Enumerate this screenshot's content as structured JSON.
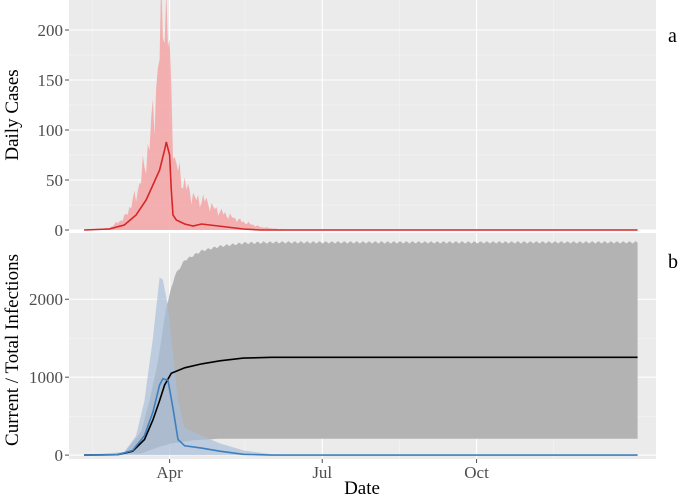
{
  "chart_data": [
    {
      "panel_tag": "a",
      "type": "line",
      "ylabel": "Daily Cases",
      "xlabel": "",
      "x_ticks": [
        "Apr",
        "Jul",
        "Oct"
      ],
      "ylim": [
        0,
        230
      ],
      "yticks": [
        0,
        50,
        100,
        150,
        200
      ],
      "ytick_labels": [
        "0",
        "50",
        "100",
        "150",
        "200"
      ],
      "grid": true,
      "series": [
        {
          "role": "median",
          "color": "#d62728",
          "points": [
            [
              "2020-02-10",
              0
            ],
            [
              "2020-02-25",
              1
            ],
            [
              "2020-03-05",
              5
            ],
            [
              "2020-03-12",
              15
            ],
            [
              "2020-03-18",
              30
            ],
            [
              "2020-03-22",
              45
            ],
            [
              "2020-03-26",
              60
            ],
            [
              "2020-03-29",
              80
            ],
            [
              "2020-03-30",
              88
            ],
            [
              "2020-04-01",
              75
            ],
            [
              "2020-04-02",
              40
            ],
            [
              "2020-04-03",
              15
            ],
            [
              "2020-04-05",
              10
            ],
            [
              "2020-04-10",
              6
            ],
            [
              "2020-04-15",
              4
            ],
            [
              "2020-04-20",
              6
            ],
            [
              "2020-04-25",
              5
            ],
            [
              "2020-05-05",
              3
            ],
            [
              "2020-05-15",
              1
            ],
            [
              "2020-05-25",
              0
            ],
            [
              "2020-06-10",
              0
            ],
            [
              "2021-01-05",
              0
            ]
          ]
        },
        {
          "role": "upper_band",
          "color": "#f4a9a8",
          "points": [
            [
              "2020-02-10",
              0
            ],
            [
              "2020-02-25",
              2
            ],
            [
              "2020-03-05",
              12
            ],
            [
              "2020-03-12",
              35
            ],
            [
              "2020-03-18",
              70
            ],
            [
              "2020-03-22",
              110
            ],
            [
              "2020-03-25",
              160
            ],
            [
              "2020-03-27",
              200
            ],
            [
              "2020-03-29",
              230
            ],
            [
              "2020-03-31",
              200
            ],
            [
              "2020-04-02",
              130
            ],
            [
              "2020-04-04",
              70
            ],
            [
              "2020-04-07",
              55
            ],
            [
              "2020-04-12",
              40
            ],
            [
              "2020-04-17",
              30
            ],
            [
              "2020-04-22",
              30
            ],
            [
              "2020-04-27",
              22
            ],
            [
              "2020-05-05",
              15
            ],
            [
              "2020-05-15",
              8
            ],
            [
              "2020-05-25",
              3
            ],
            [
              "2020-06-05",
              1
            ],
            [
              "2020-06-15",
              0
            ],
            [
              "2021-01-05",
              0
            ]
          ]
        },
        {
          "role": "lower_band",
          "color": "#f4a9a8",
          "points": [
            [
              "2020-02-10",
              0
            ],
            [
              "2021-01-05",
              0
            ]
          ]
        }
      ]
    },
    {
      "panel_tag": "b",
      "type": "line",
      "ylabel": "Current / Total Infections",
      "xlabel": "Date",
      "x_ticks": [
        "Apr",
        "Jul",
        "Oct"
      ],
      "ylim": [
        -50,
        2850
      ],
      "yticks": [
        0,
        1000,
        2000
      ],
      "ytick_labels": [
        "0",
        "1000",
        "2000"
      ],
      "grid": true,
      "series": [
        {
          "role": "total_median",
          "color": "#000000",
          "points": [
            [
              "2020-02-10",
              0
            ],
            [
              "2020-03-01",
              5
            ],
            [
              "2020-03-10",
              50
            ],
            [
              "2020-03-17",
              200
            ],
            [
              "2020-03-22",
              450
            ],
            [
              "2020-03-26",
              700
            ],
            [
              "2020-03-29",
              900
            ],
            [
              "2020-04-02",
              1050
            ],
            [
              "2020-04-10",
              1120
            ],
            [
              "2020-04-20",
              1170
            ],
            [
              "2020-05-01",
              1210
            ],
            [
              "2020-05-15",
              1245
            ],
            [
              "2020-06-01",
              1255
            ],
            [
              "2021-01-05",
              1255
            ]
          ]
        },
        {
          "role": "total_upper",
          "color": "#b3b3b3",
          "points": [
            [
              "2020-02-10",
              0
            ],
            [
              "2020-03-05",
              30
            ],
            [
              "2020-03-15",
              300
            ],
            [
              "2020-03-20",
              700
            ],
            [
              "2020-03-25",
              1200
            ],
            [
              "2020-03-30",
              1900
            ],
            [
              "2020-04-04",
              2300
            ],
            [
              "2020-04-10",
              2500
            ],
            [
              "2020-04-20",
              2620
            ],
            [
              "2020-05-01",
              2680
            ],
            [
              "2020-05-15",
              2720
            ],
            [
              "2020-06-01",
              2730
            ],
            [
              "2021-01-05",
              2730
            ]
          ]
        },
        {
          "role": "total_lower",
          "color": "#b3b3b3",
          "points": [
            [
              "2020-02-10",
              0
            ],
            [
              "2020-03-15",
              20
            ],
            [
              "2020-03-25",
              100
            ],
            [
              "2020-04-02",
              150
            ],
            [
              "2020-04-15",
              190
            ],
            [
              "2020-05-01",
              210
            ],
            [
              "2021-01-05",
              210
            ]
          ]
        },
        {
          "role": "current_median",
          "color": "#3d7fbf",
          "points": [
            [
              "2020-02-10",
              0
            ],
            [
              "2020-03-01",
              5
            ],
            [
              "2020-03-10",
              60
            ],
            [
              "2020-03-17",
              250
            ],
            [
              "2020-03-22",
              550
            ],
            [
              "2020-03-26",
              900
            ],
            [
              "2020-03-28",
              980
            ],
            [
              "2020-03-31",
              960
            ],
            [
              "2020-04-03",
              600
            ],
            [
              "2020-04-06",
              200
            ],
            [
              "2020-04-10",
              120
            ],
            [
              "2020-04-20",
              90
            ],
            [
              "2020-05-01",
              50
            ],
            [
              "2020-05-15",
              10
            ],
            [
              "2020-06-01",
              0
            ],
            [
              "2021-01-05",
              0
            ]
          ]
        },
        {
          "role": "current_upper",
          "color": "#a9bfd9",
          "points": [
            [
              "2020-02-10",
              0
            ],
            [
              "2020-03-05",
              40
            ],
            [
              "2020-03-12",
              250
            ],
            [
              "2020-03-17",
              700
            ],
            [
              "2020-03-22",
              1500
            ],
            [
              "2020-03-26",
              2280
            ],
            [
              "2020-03-28",
              2250
            ],
            [
              "2020-03-31",
              1900
            ],
            [
              "2020-04-03",
              1300
            ],
            [
              "2020-04-06",
              700
            ],
            [
              "2020-04-10",
              350
            ],
            [
              "2020-04-20",
              250
            ],
            [
              "2020-05-01",
              150
            ],
            [
              "2020-05-15",
              60
            ],
            [
              "2020-06-01",
              10
            ],
            [
              "2020-06-15",
              0
            ],
            [
              "2021-01-05",
              0
            ]
          ]
        },
        {
          "role": "current_lower",
          "color": "#a9bfd9",
          "points": [
            [
              "2020-02-10",
              0
            ],
            [
              "2021-01-05",
              0
            ]
          ]
        }
      ]
    }
  ]
}
